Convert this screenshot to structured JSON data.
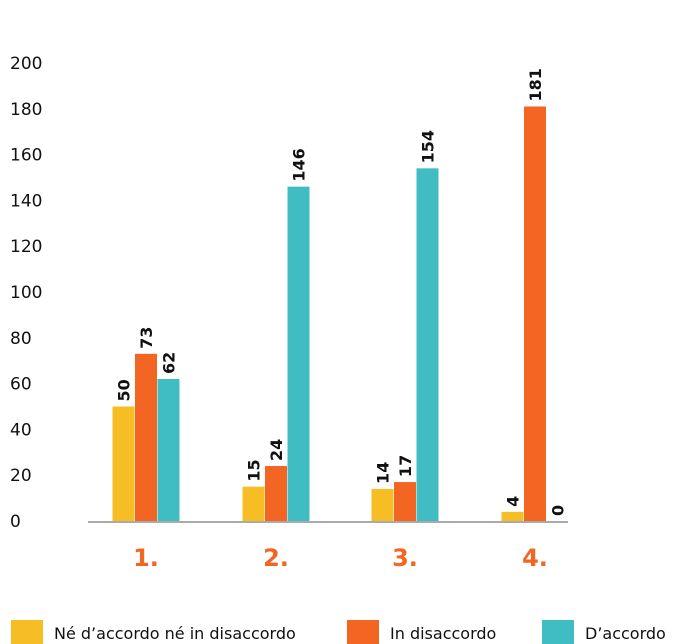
{
  "chart_data": {
    "type": "bar",
    "title": "",
    "xlabel": "",
    "ylabel": "",
    "categories": [
      "1.",
      "2.",
      "3.",
      "4."
    ],
    "ylim": [
      0,
      200
    ],
    "yticks": [
      0,
      20,
      40,
      60,
      80,
      100,
      120,
      140,
      160,
      180,
      200
    ],
    "grid": false,
    "legend_position": "bottom",
    "series": [
      {
        "name": "Né d’accordo né in disaccordo",
        "color": "#f6bd25",
        "values": [
          50,
          15,
          14,
          4
        ]
      },
      {
        "name": "In disaccordo",
        "color": "#f26522",
        "values": [
          73,
          24,
          17,
          181
        ]
      },
      {
        "name": "D’accordo",
        "color": "#40bcc3",
        "values": [
          62,
          146,
          154,
          0
        ]
      }
    ]
  },
  "colors": {
    "category_label": "#f26522",
    "axis": "#555555"
  }
}
